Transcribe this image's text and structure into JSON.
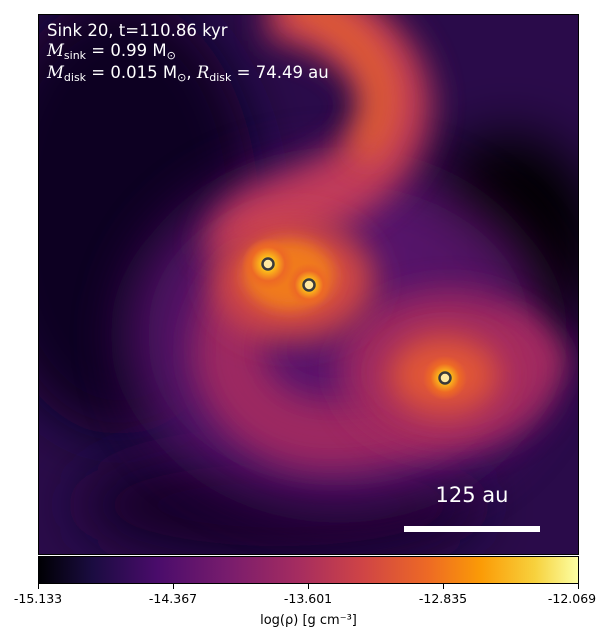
{
  "annotation": {
    "line1": "Sink 20, t=110.86 kyr",
    "line2_symbol": "M",
    "line2_sub": "sink",
    "line2_value": " = 0.99 M",
    "line2_unit_sub": "⊙",
    "line3_symbol": "M",
    "line3_sub": "disk",
    "line3_value": " = 0.015 M",
    "line3_unit_sub": "⊙",
    "line3_sep": ", ",
    "line3_symbol2": "R",
    "line3_sub2": "disk",
    "line3_value2": " = 74.49 au"
  },
  "scalebar": {
    "label": "125 au"
  },
  "colorbar": {
    "label": "log(ρ) [g cm⁻³]",
    "ticks": [
      "-15.133",
      "-14.367",
      "-13.601",
      "-12.835",
      "-12.069"
    ],
    "range": [
      -15.133,
      -12.069
    ],
    "colormap": "inferno"
  },
  "sinks": {
    "count": 3,
    "marker_fill": "#ffe9a0",
    "marker_stroke": "#3a3a3a"
  },
  "colors": {
    "background_dark": "#000004",
    "dense_gas": "#fcffa4",
    "arm": "#ed6925"
  }
}
